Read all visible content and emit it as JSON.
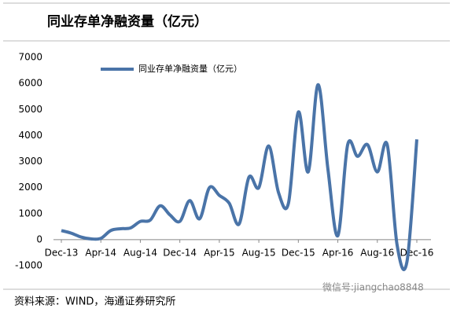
{
  "chart_data": {
    "type": "line",
    "title": "同业存单净融资量（亿元）",
    "source": "资料来源：WIND，海通证券研究所",
    "watermark": "微信号:jiangchao8848",
    "categories": [
      "Dec-13",
      null,
      null,
      null,
      "Apr-14",
      null,
      null,
      null,
      "Aug-14",
      null,
      null,
      null,
      "Dec-14",
      null,
      null,
      null,
      "Apr-15",
      null,
      null,
      null,
      "Aug-15",
      null,
      null,
      null,
      "Dec-15",
      null,
      null,
      null,
      "Apr-16",
      null,
      null,
      null,
      "Aug-16",
      null,
      null,
      null,
      "Dec-16"
    ],
    "series": [
      {
        "name": "同业存单净融资量（亿元）",
        "color": "#4a74a8",
        "values": [
          350,
          250,
          100,
          30,
          50,
          350,
          420,
          450,
          700,
          750,
          1300,
          950,
          700,
          1500,
          800,
          2000,
          1700,
          1400,
          600,
          2400,
          2000,
          3600,
          1800,
          1400,
          4900,
          2600,
          5950,
          2700,
          150,
          3650,
          3200,
          3650,
          2600,
          3650,
          -200,
          -850,
          3850
        ]
      }
    ],
    "ylim": [
      -1000,
      7000
    ],
    "yticks": [
      -1000,
      0,
      1000,
      2000,
      3000,
      4000,
      5000,
      6000,
      7000
    ],
    "grid": false,
    "legend": "top-left"
  }
}
